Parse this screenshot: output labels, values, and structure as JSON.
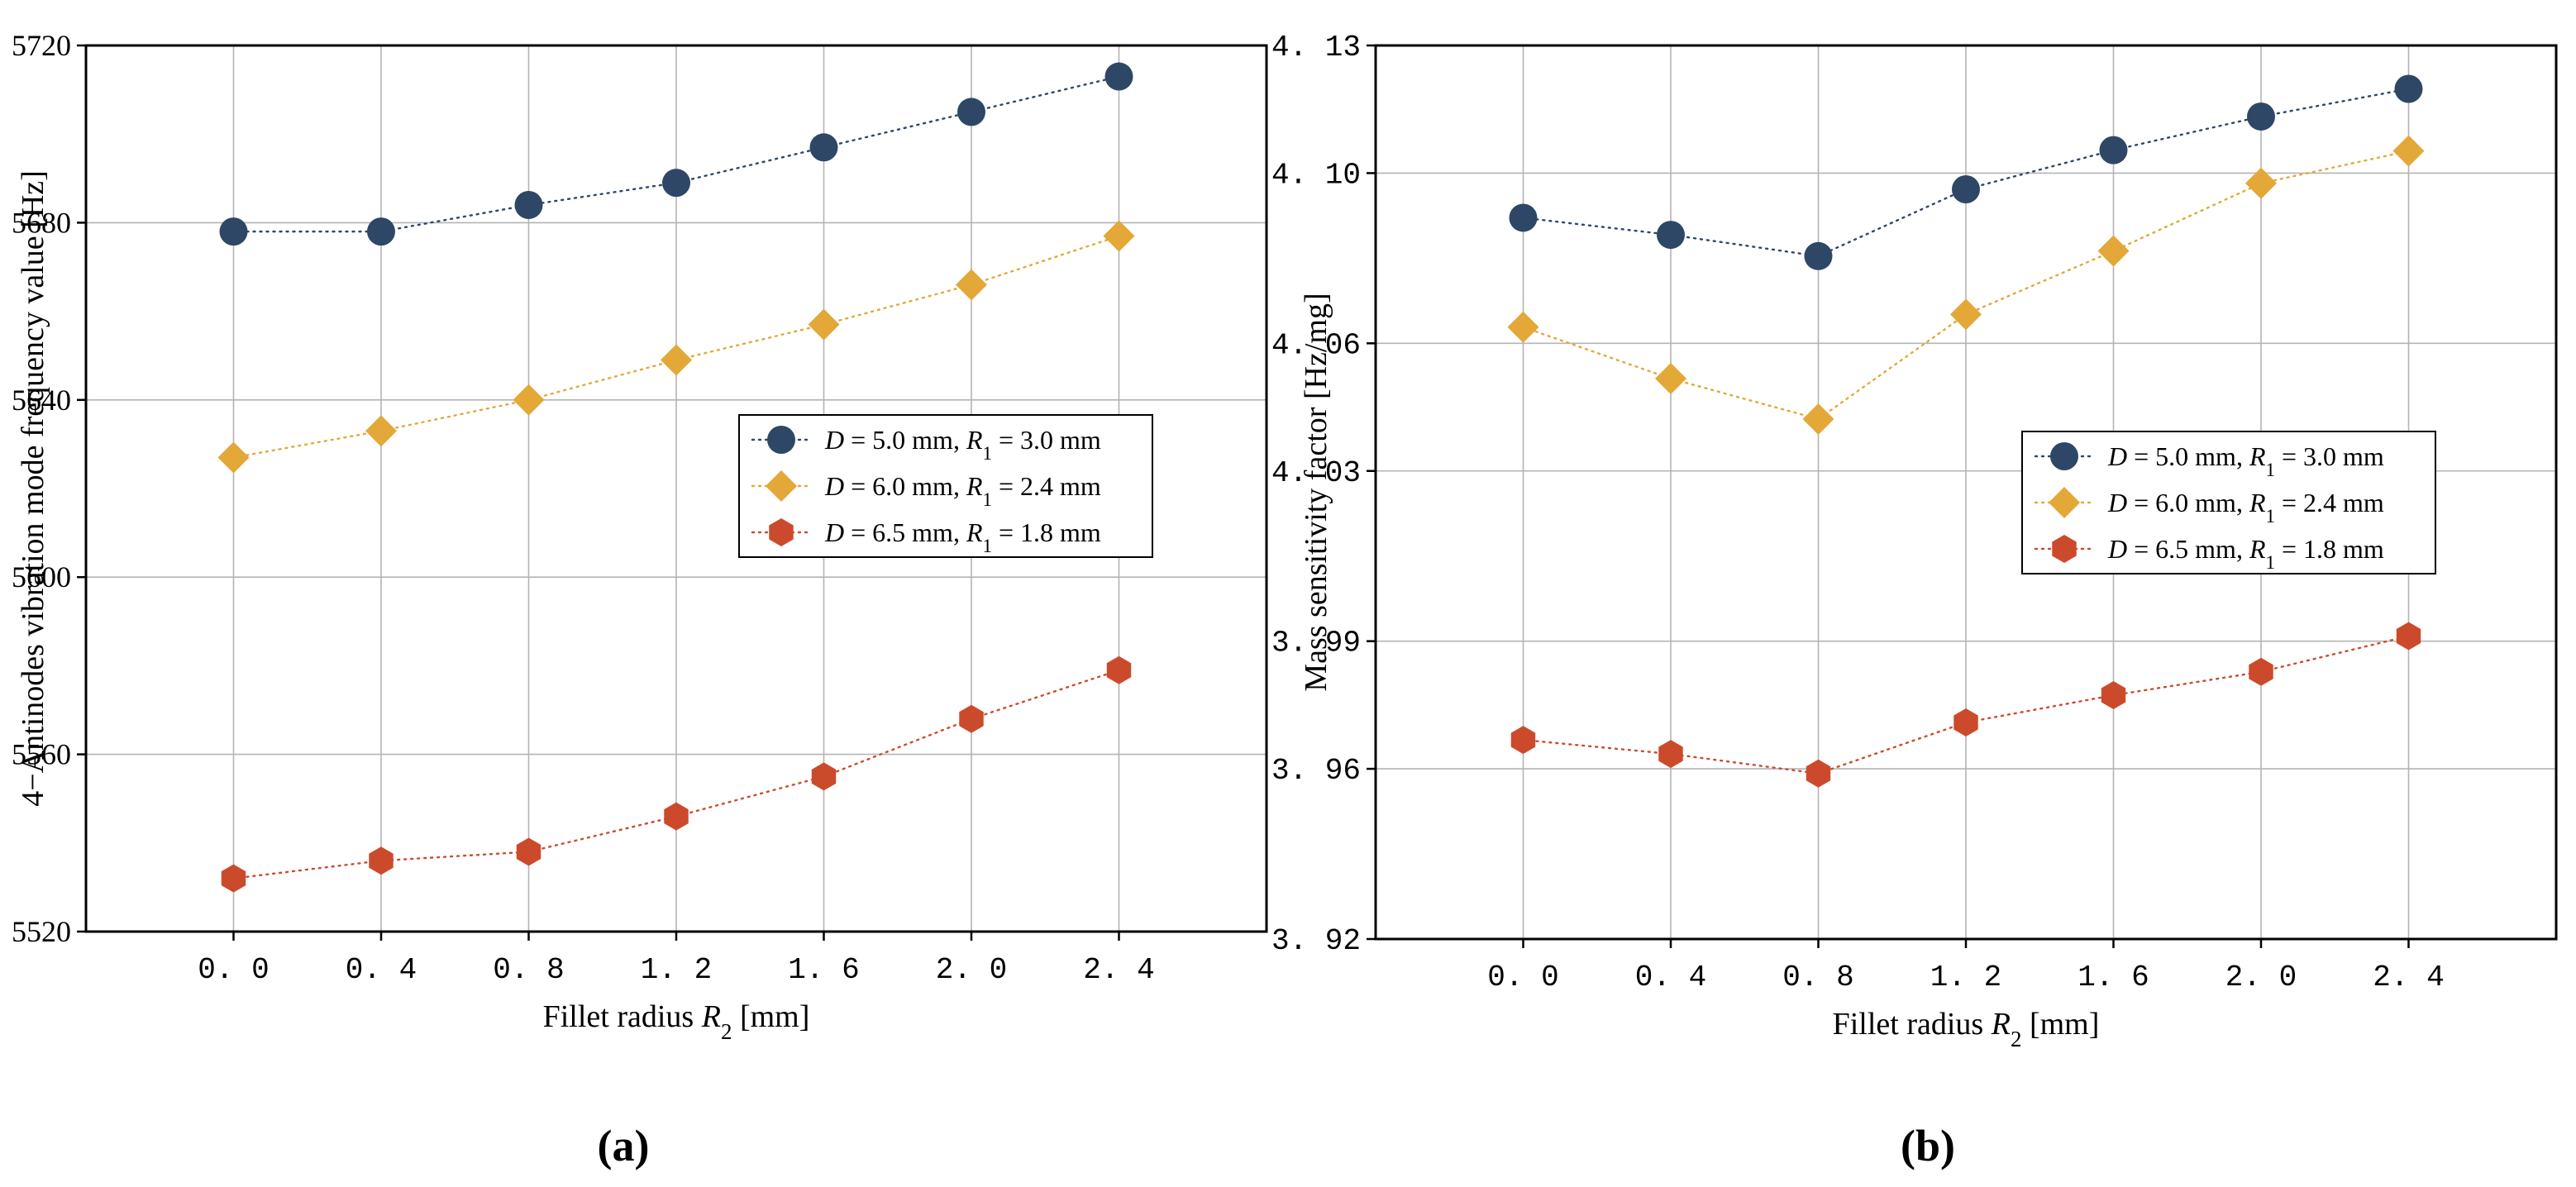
{
  "chart_data": [
    {
      "panel_label": "(a)",
      "type": "line",
      "title": "",
      "xlabel": {
        "prefix": "Fillet radius ",
        "symbol": "R",
        "subscript": "2",
        "suffix": " [mm]"
      },
      "ylabel": "4−Antinodes vibration mode frequency value [Hz]",
      "x": [
        0.0,
        0.4,
        0.8,
        1.2,
        1.6,
        2.0,
        2.4
      ],
      "xtick_labels": [
        "0. 0",
        "0. 4",
        "0. 8",
        "1. 2",
        "1. 6",
        "2. 0",
        "2. 4"
      ],
      "xlim": [
        -0.4,
        2.8
      ],
      "ylim": [
        5520,
        5720
      ],
      "yticks": [
        5520,
        5560,
        5600,
        5640,
        5680,
        5720
      ],
      "ytick_labels": [
        "5520",
        "5560",
        "5600",
        "5640",
        "5680",
        "5720"
      ],
      "grid": true,
      "legend_position": "center-right",
      "series": [
        {
          "label": {
            "d": "D",
            "d_val": " = 5.0 mm, ",
            "r": "R",
            "r_sub": "1",
            "r_val": " = 3.0 mm"
          },
          "marker": "circle",
          "color": "#2e4766",
          "values": [
            5678,
            5678,
            5684,
            5689,
            5697,
            5705,
            5713
          ]
        },
        {
          "label": {
            "d": "D",
            "d_val": " = 6.0 mm, ",
            "r": "R",
            "r_sub": "1",
            "r_val": " = 2.4 mm"
          },
          "marker": "diamond",
          "color": "#e3a838",
          "values": [
            5627,
            5633,
            5640,
            5649,
            5657,
            5666,
            5677
          ]
        },
        {
          "label": {
            "d": "D",
            "d_val": " = 6.5 mm, ",
            "r": "R",
            "r_sub": "1",
            "r_val": " = 1.8 mm"
          },
          "marker": "hexagon",
          "color": "#cc4a2c",
          "values": [
            5532,
            5536,
            5538,
            5546,
            5555,
            5568,
            5579
          ]
        }
      ]
    },
    {
      "panel_label": "(b)",
      "type": "line",
      "title": "",
      "xlabel": {
        "prefix": "Fillet radius ",
        "symbol": "R",
        "subscript": "2",
        "suffix": " [mm]"
      },
      "ylabel": "Mass sensitivity factor [Hz/mg]",
      "x": [
        0.0,
        0.4,
        0.8,
        1.2,
        1.6,
        2.0,
        2.4
      ],
      "xtick_labels": [
        "0. 0",
        "0. 4",
        "0. 8",
        "1. 2",
        "1. 6",
        "2. 0",
        "2. 4"
      ],
      "xlim": [
        -0.4,
        2.8
      ],
      "ylim": [
        3.92,
        4.13
      ],
      "yticks": [
        3.92,
        3.96,
        3.99,
        4.03,
        4.06,
        4.1,
        4.13
      ],
      "ytick_labels": [
        "3. 92",
        "3. 96",
        "3. 99",
        "4. 03",
        "4. 06",
        "4. 10",
        "4. 13"
      ],
      "grid": true,
      "legend_position": "center-right",
      "series": [
        {
          "label": {
            "d": "D",
            "d_val": " = 5.0 mm, ",
            "r": "R",
            "r_sub": "1",
            "r_val": " = 3.0 mm"
          },
          "marker": "circle",
          "color": "#2e4766",
          "values": [
            4.0895,
            4.0855,
            4.0805,
            4.0962,
            4.1054,
            4.1133,
            4.1198
          ]
        },
        {
          "label": {
            "d": "D",
            "d_val": " = 6.0 mm, ",
            "r": "R",
            "r_sub": "1",
            "r_val": " = 2.4 mm"
          },
          "marker": "diamond",
          "color": "#e3a838",
          "values": [
            4.0638,
            4.0517,
            4.0422,
            4.0668,
            4.0817,
            4.0976,
            4.1052
          ]
        },
        {
          "label": {
            "d": "D",
            "d_val": " = 6.5 mm, ",
            "r": "R",
            "r_sub": "1",
            "r_val": " = 1.8 mm"
          },
          "marker": "hexagon",
          "color": "#cc4a2c",
          "values": [
            3.9668,
            3.9635,
            3.9589,
            3.9709,
            3.9773,
            3.9828,
            3.9912
          ]
        }
      ]
    }
  ]
}
